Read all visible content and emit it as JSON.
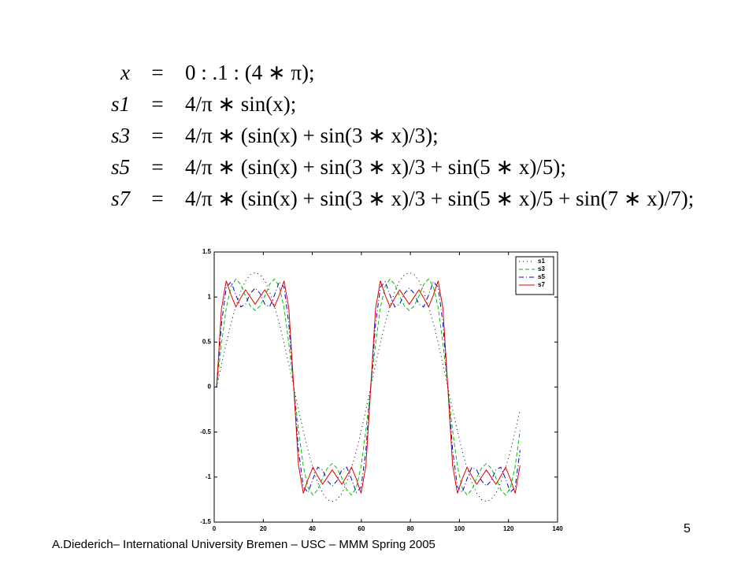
{
  "equations": [
    {
      "lhs": "x",
      "rel": "=",
      "rhs": "0 : .1 : (4 ∗ π);"
    },
    {
      "lhs": "s1",
      "rel": "=",
      "rhs": "4/π ∗ sin(x);"
    },
    {
      "lhs": "s3",
      "rel": "=",
      "rhs": "4/π ∗ (sin(x) + sin(3 ∗ x)/3);"
    },
    {
      "lhs": "s5",
      "rel": "=",
      "rhs": "4/π ∗ (sin(x) + sin(3 ∗ x)/3 + sin(5 ∗ x)/5);"
    },
    {
      "lhs": "s7",
      "rel": "=",
      "rhs": "4/π ∗ (sin(x) + sin(3 ∗ x)/3 + sin(5 ∗ x)/5 + sin(7 ∗ x)/7);"
    }
  ],
  "chart_data": {
    "type": "line",
    "x": [
      1,
      2.96,
      4.93,
      6.89,
      8.85,
      10.82,
      12.78,
      14.74,
      16.71,
      18.67,
      20.64,
      22.6,
      24.56,
      26.53,
      28.49,
      30.45,
      32.42,
      34.38,
      36.34,
      38.31,
      40.27,
      42.23,
      44.2,
      46.16,
      48.12,
      50.09,
      52.05,
      54.01,
      55.98,
      57.94,
      59.91,
      61.87,
      63.83,
      65.8,
      67.76,
      69.72,
      71.69,
      73.65,
      75.61,
      77.58,
      79.54,
      81.5,
      83.47,
      85.43,
      87.39,
      89.36,
      91.32,
      93.28,
      95.25,
      97.21,
      99.18,
      101.14,
      103.1,
      105.07,
      107.03,
      108.99,
      110.96,
      112.92,
      114.88,
      116.85,
      118.81,
      120.77,
      122.74,
      124.7
    ],
    "series": [
      {
        "name": "s1",
        "color": "#000000",
        "line_style": "dotted",
        "values": [
          0,
          0.25,
          0.49,
          0.71,
          0.9,
          1.06,
          1.18,
          1.25,
          1.27,
          1.25,
          1.18,
          1.06,
          0.9,
          0.71,
          0.49,
          0.25,
          0,
          -0.25,
          -0.49,
          -0.71,
          -0.9,
          -1.06,
          -1.18,
          -1.25,
          -1.27,
          -1.25,
          -1.18,
          -1.06,
          -0.9,
          -0.71,
          -0.49,
          -0.25,
          0,
          0.25,
          0.49,
          0.71,
          0.9,
          1.06,
          1.18,
          1.25,
          1.27,
          1.25,
          1.18,
          1.06,
          0.9,
          0.71,
          0.49,
          0.25,
          0,
          -0.25,
          -0.49,
          -0.71,
          -0.9,
          -1.06,
          -1.18,
          -1.25,
          -1.27,
          -1.25,
          -1.18,
          -1.06,
          -0.9,
          -0.71,
          -0.49,
          -0.25
        ]
      },
      {
        "name": "s3",
        "color": "#00c000",
        "line_style": "dashed",
        "values": [
          0,
          0.48,
          0.88,
          1.12,
          1.2,
          1.14,
          1.01,
          0.9,
          0.85,
          0.9,
          1.01,
          1.14,
          1.2,
          1.12,
          0.88,
          0.48,
          0,
          -0.48,
          -0.88,
          -1.12,
          -1.2,
          -1.14,
          -1.01,
          -0.9,
          -0.85,
          -0.9,
          -1.01,
          -1.14,
          -1.2,
          -1.12,
          -0.88,
          -0.48,
          0,
          0.48,
          0.88,
          1.12,
          1.2,
          1.14,
          1.01,
          0.9,
          0.85,
          0.9,
          1.01,
          1.14,
          1.2,
          1.12,
          0.88,
          0.48,
          0,
          -0.48,
          -0.88,
          -1.12,
          -1.2,
          -1.14,
          -1.01,
          -0.9,
          -0.85,
          -0.9,
          -1.01,
          -1.14,
          -1.2,
          -1.12,
          -0.88,
          -0.48
        ]
      },
      {
        "name": "s5",
        "color": "#0000cc",
        "line_style": "dashdot",
        "values": [
          0,
          0.7,
          1.11,
          1.17,
          1.02,
          0.89,
          0.92,
          1.04,
          1.1,
          1.04,
          0.92,
          0.89,
          1.02,
          1.17,
          1.11,
          0.7,
          0,
          -0.7,
          -1.11,
          -1.17,
          -1.02,
          -0.89,
          -0.92,
          -1.04,
          -1.1,
          -1.04,
          -0.92,
          -0.89,
          -1.02,
          -1.17,
          -1.11,
          -0.7,
          0,
          0.7,
          1.11,
          1.17,
          1.02,
          0.89,
          0.92,
          1.04,
          1.1,
          1.04,
          0.92,
          0.89,
          1.02,
          1.17,
          1.11,
          0.7,
          0,
          -0.7,
          -1.11,
          -1.17,
          -1.02,
          -0.89,
          -0.92,
          -1.04,
          -1.1,
          -1.04,
          -0.92,
          -0.89,
          -1.02,
          -1.17,
          -1.11,
          -0.7
        ]
      },
      {
        "name": "s7",
        "color": "#e00000",
        "line_style": "solid",
        "values": [
          0,
          0.87,
          1.18,
          1.02,
          0.89,
          0.99,
          1.08,
          1,
          0.92,
          1,
          1.08,
          0.99,
          0.89,
          1.02,
          1.18,
          0.87,
          0,
          -0.87,
          -1.18,
          -1.02,
          -0.89,
          -0.99,
          -1.08,
          -1,
          -0.92,
          -1,
          -1.08,
          -0.99,
          -0.89,
          -1.02,
          -1.18,
          -0.87,
          0,
          0.87,
          1.18,
          1.02,
          0.89,
          0.99,
          1.08,
          1,
          0.92,
          1,
          1.08,
          0.99,
          0.89,
          1.02,
          1.18,
          0.87,
          0,
          -0.87,
          -1.18,
          -1.02,
          -0.89,
          -0.99,
          -1.08,
          -1,
          -0.92,
          -1,
          -1.08,
          -0.99,
          -0.89,
          -1.02,
          -1.18,
          -0.87
        ]
      }
    ],
    "xlim": [
      0,
      140
    ],
    "xticks": [
      0,
      20,
      40,
      60,
      80,
      100,
      120,
      140
    ],
    "ylim": [
      -1.5,
      1.5
    ],
    "yticks": [
      -1.5,
      -1,
      -0.5,
      0,
      0.5,
      1,
      1.5
    ],
    "legend": "upper right"
  },
  "footer": "A.Diederich– International University Bremen – USC – MMM  Spring 2005",
  "page_number": "5"
}
